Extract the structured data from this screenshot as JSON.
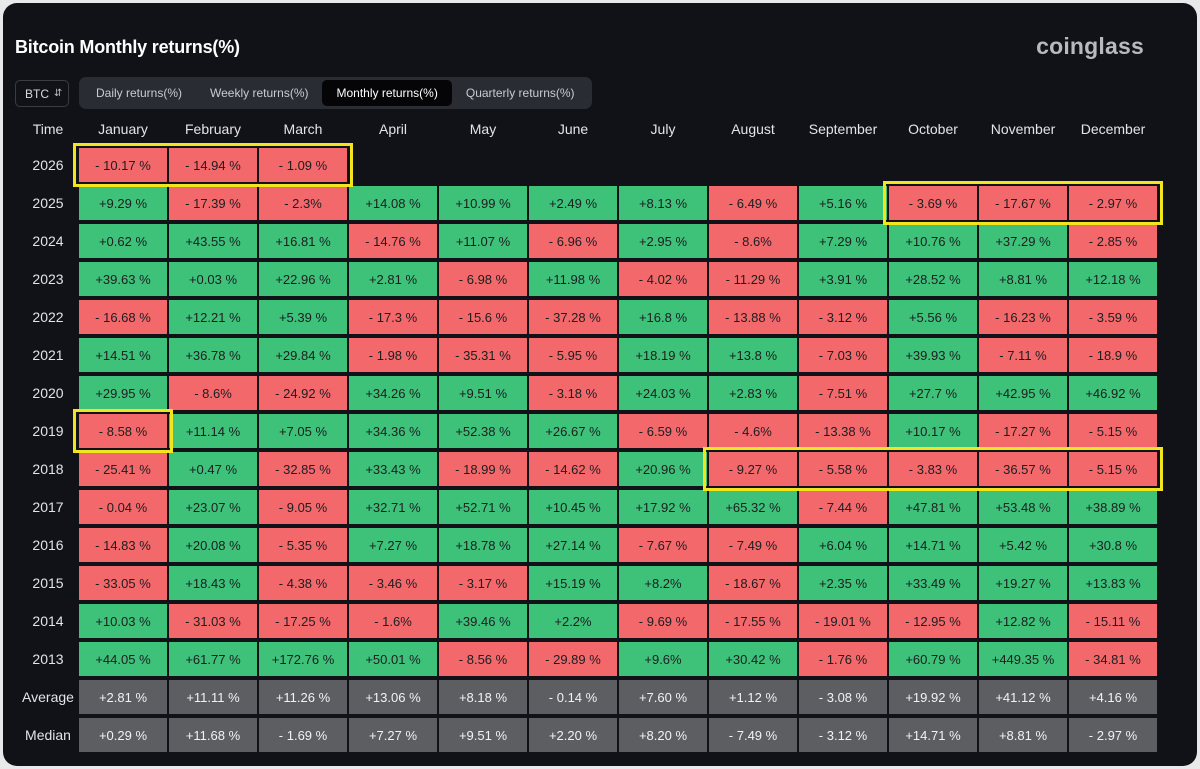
{
  "title": "Bitcoin Monthly returns(%)",
  "brand": "coinglass",
  "asset_select": {
    "value": "BTC",
    "icon": "chevron-updown-icon"
  },
  "tabs": [
    {
      "label": "Daily returns(%)",
      "active": false
    },
    {
      "label": "Weekly returns(%)",
      "active": false
    },
    {
      "label": "Monthly returns(%)",
      "active": true
    },
    {
      "label": "Quarterly returns(%)",
      "active": false
    }
  ],
  "colors": {
    "positive": "#3ec27a",
    "negative": "#f3696b",
    "stat": "#5d5e62",
    "highlight": "#f2e51d",
    "background": "#111217"
  },
  "chart_data": {
    "type": "heatmap",
    "title": "Bitcoin Monthly returns(%)",
    "row_header": "Time",
    "columns": [
      "January",
      "February",
      "March",
      "April",
      "May",
      "June",
      "July",
      "August",
      "September",
      "October",
      "November",
      "December"
    ],
    "rows": [
      {
        "label": "2026",
        "cells": [
          "- 10.17 %",
          "- 14.94 %",
          "- 1.09 %",
          "",
          "",
          "",
          "",
          "",
          "",
          "",
          "",
          ""
        ]
      },
      {
        "label": "2025",
        "cells": [
          "+9.29 %",
          "- 17.39 %",
          "- 2.3%",
          "+14.08 %",
          "+10.99 %",
          "+2.49 %",
          "+8.13 %",
          "- 6.49 %",
          "+5.16 %",
          "- 3.69 %",
          "- 17.67 %",
          "- 2.97 %"
        ]
      },
      {
        "label": "2024",
        "cells": [
          "+0.62 %",
          "+43.55 %",
          "+16.81 %",
          "- 14.76 %",
          "+11.07 %",
          "- 6.96 %",
          "+2.95 %",
          "- 8.6%",
          "+7.29 %",
          "+10.76 %",
          "+37.29 %",
          "- 2.85 %"
        ]
      },
      {
        "label": "2023",
        "cells": [
          "+39.63 %",
          "+0.03 %",
          "+22.96 %",
          "+2.81 %",
          "- 6.98 %",
          "+11.98 %",
          "- 4.02 %",
          "- 11.29 %",
          "+3.91 %",
          "+28.52 %",
          "+8.81 %",
          "+12.18 %"
        ]
      },
      {
        "label": "2022",
        "cells": [
          "- 16.68 %",
          "+12.21 %",
          "+5.39 %",
          "- 17.3 %",
          "- 15.6 %",
          "- 37.28 %",
          "+16.8 %",
          "- 13.88 %",
          "- 3.12 %",
          "+5.56 %",
          "- 16.23 %",
          "- 3.59 %"
        ]
      },
      {
        "label": "2021",
        "cells": [
          "+14.51 %",
          "+36.78 %",
          "+29.84 %",
          "- 1.98 %",
          "- 35.31 %",
          "- 5.95 %",
          "+18.19 %",
          "+13.8 %",
          "- 7.03 %",
          "+39.93 %",
          "- 7.11 %",
          "- 18.9 %"
        ]
      },
      {
        "label": "2020",
        "cells": [
          "+29.95 %",
          "- 8.6%",
          "- 24.92 %",
          "+34.26 %",
          "+9.51 %",
          "- 3.18 %",
          "+24.03 %",
          "+2.83 %",
          "- 7.51 %",
          "+27.7 %",
          "+42.95 %",
          "+46.92 %"
        ]
      },
      {
        "label": "2019",
        "cells": [
          "- 8.58 %",
          "+11.14 %",
          "+7.05 %",
          "+34.36 %",
          "+52.38 %",
          "+26.67 %",
          "- 6.59 %",
          "- 4.6%",
          "- 13.38 %",
          "+10.17 %",
          "- 17.27 %",
          "- 5.15 %"
        ]
      },
      {
        "label": "2018",
        "cells": [
          "- 25.41 %",
          "+0.47 %",
          "- 32.85 %",
          "+33.43 %",
          "- 18.99 %",
          "- 14.62 %",
          "+20.96 %",
          "- 9.27 %",
          "- 5.58 %",
          "- 3.83 %",
          "- 36.57 %",
          "- 5.15 %"
        ]
      },
      {
        "label": "2017",
        "cells": [
          "- 0.04 %",
          "+23.07 %",
          "- 9.05 %",
          "+32.71 %",
          "+52.71 %",
          "+10.45 %",
          "+17.92 %",
          "+65.32 %",
          "- 7.44 %",
          "+47.81 %",
          "+53.48 %",
          "+38.89 %"
        ]
      },
      {
        "label": "2016",
        "cells": [
          "- 14.83 %",
          "+20.08 %",
          "- 5.35 %",
          "+7.27 %",
          "+18.78 %",
          "+27.14 %",
          "- 7.67 %",
          "- 7.49 %",
          "+6.04 %",
          "+14.71 %",
          "+5.42 %",
          "+30.8 %"
        ]
      },
      {
        "label": "2015",
        "cells": [
          "- 33.05 %",
          "+18.43 %",
          "- 4.38 %",
          "- 3.46 %",
          "- 3.17 %",
          "+15.19 %",
          "+8.2%",
          "- 18.67 %",
          "+2.35 %",
          "+33.49 %",
          "+19.27 %",
          "+13.83 %"
        ]
      },
      {
        "label": "2014",
        "cells": [
          "+10.03 %",
          "- 31.03 %",
          "- 17.25 %",
          "- 1.6%",
          "+39.46 %",
          "+2.2%",
          "- 9.69 %",
          "- 17.55 %",
          "- 19.01 %",
          "- 12.95 %",
          "+12.82 %",
          "- 15.11 %"
        ]
      },
      {
        "label": "2013",
        "cells": [
          "+44.05 %",
          "+61.77 %",
          "+172.76 %",
          "+50.01 %",
          "- 8.56 %",
          "- 29.89 %",
          "+9.6%",
          "+30.42 %",
          "- 1.76 %",
          "+60.79 %",
          "+449.35 %",
          "- 34.81 %"
        ]
      }
    ],
    "summary_rows": [
      {
        "label": "Average",
        "cells": [
          "+2.81 %",
          "+11.11 %",
          "+11.26 %",
          "+13.06 %",
          "+8.18 %",
          "- 0.14 %",
          "+7.60 %",
          "+1.12 %",
          "- 3.08 %",
          "+19.92 %",
          "+41.12 %",
          "+4.16 %"
        ]
      },
      {
        "label": "Median",
        "cells": [
          "+0.29 %",
          "+11.68 %",
          "- 1.69 %",
          "+7.27 %",
          "+9.51 %",
          "+2.20 %",
          "+8.20 %",
          "- 7.49 %",
          "- 3.12 %",
          "+14.71 %",
          "+8.81 %",
          "- 2.97 %"
        ]
      }
    ],
    "highlights": [
      {
        "row": "2026",
        "from": "January",
        "to": "March"
      },
      {
        "row": "2025",
        "from": "October",
        "to": "December"
      },
      {
        "row": "2019",
        "from": "January",
        "to": "January"
      },
      {
        "row": "2018",
        "from": "August",
        "to": "December"
      }
    ]
  }
}
